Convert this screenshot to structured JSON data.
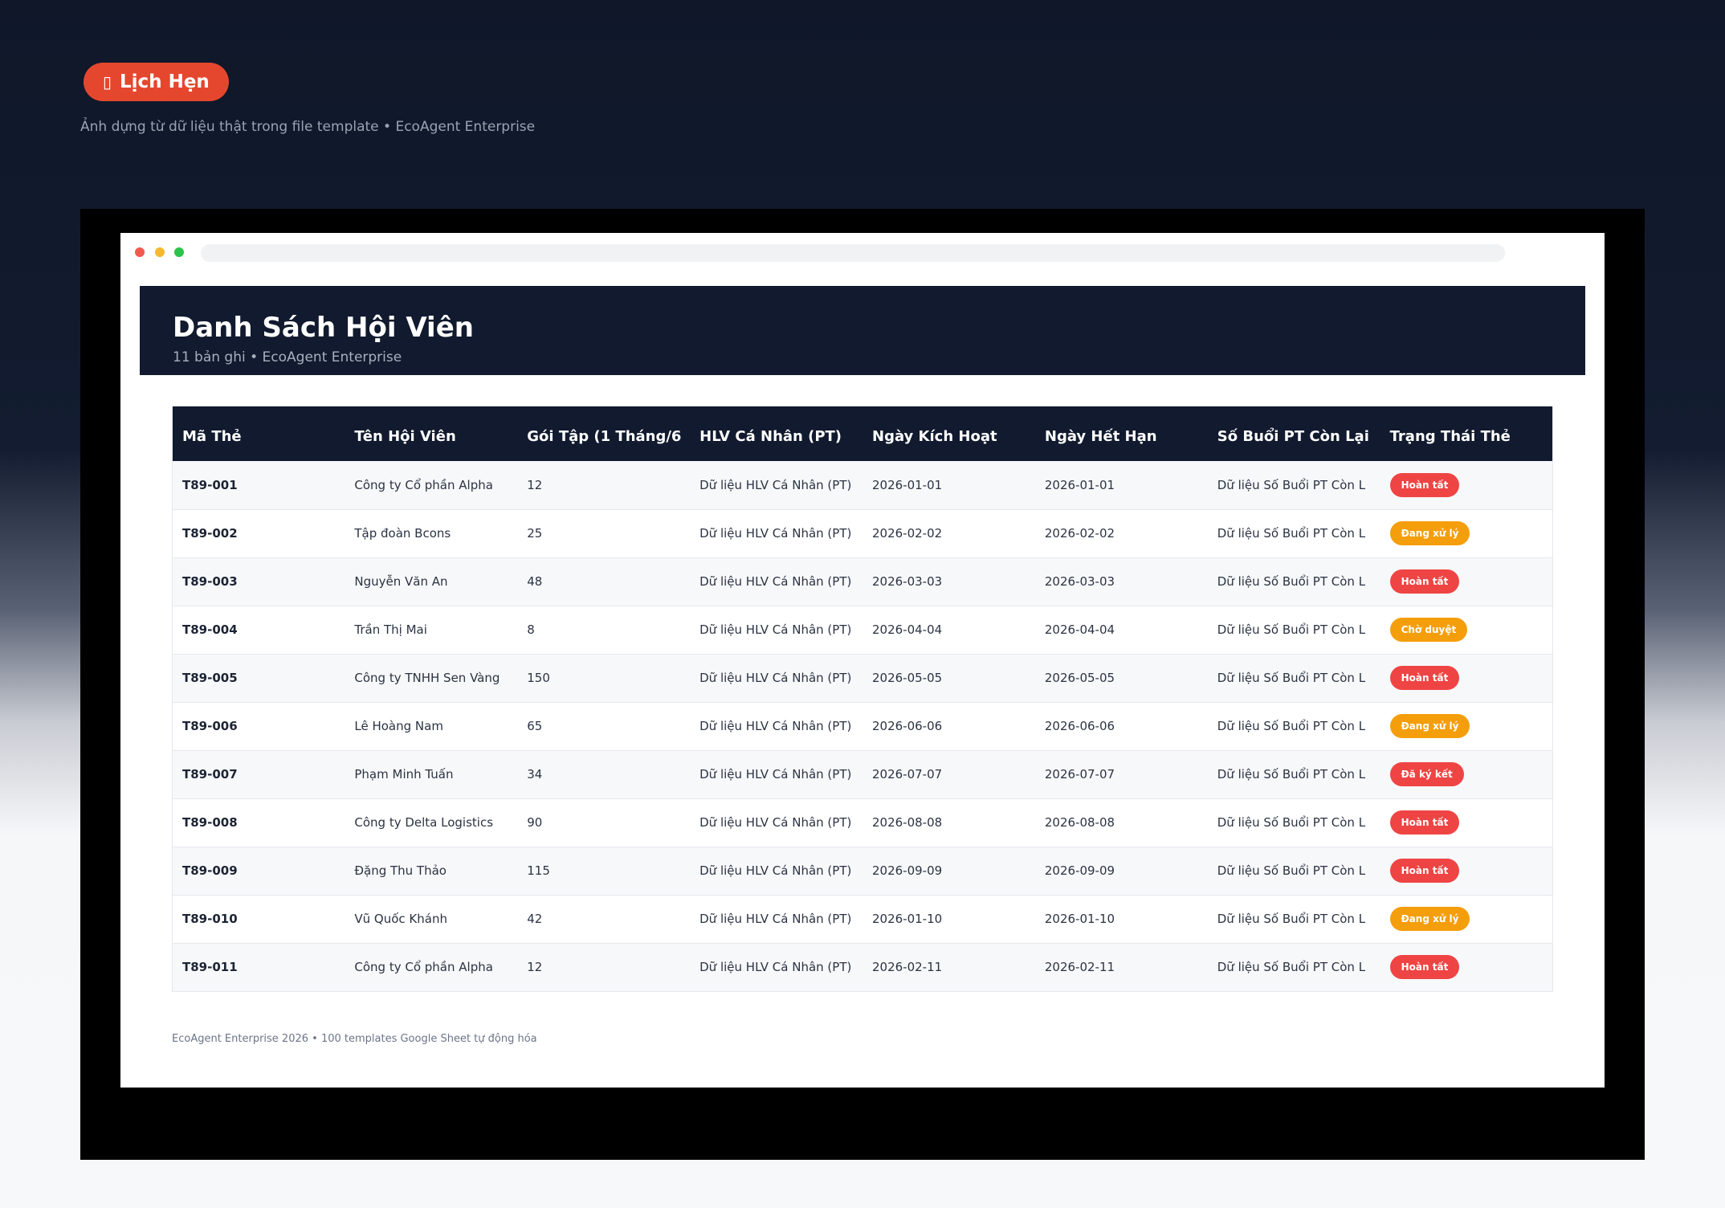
{
  "top": {
    "pill_icon": "▯",
    "pill_label": "Lịch Hẹn",
    "subtitle": "Ảnh dựng từ dữ liệu thật trong file template • EcoAgent Enterprise"
  },
  "header": {
    "title": "Danh Sách Hội Viên",
    "meta": "11 bản ghi • EcoAgent Enterprise"
  },
  "table": {
    "columns": [
      "Mã Thẻ",
      "Tên Hội Viên",
      "Gói Tập (1 Tháng/6",
      "HLV Cá Nhân (PT)",
      "Ngày Kích Hoạt",
      "Ngày Hết Hạn",
      "Số Buổi PT Còn Lại",
      "Trạng Thái Thẻ"
    ],
    "rows": [
      {
        "code": "T89-001",
        "name": "Công ty Cổ phần Alpha",
        "pkg": "12",
        "pt": "Dữ liệu HLV Cá Nhân (PT)",
        "start": "2026-01-01",
        "end": "2026-01-01",
        "left": "Dữ liệu Số Buổi PT Còn L",
        "status": "Hoàn tất",
        "color": "#ef4444"
      },
      {
        "code": "T89-002",
        "name": "Tập đoàn Bcons",
        "pkg": "25",
        "pt": "Dữ liệu HLV Cá Nhân (PT)",
        "start": "2026-02-02",
        "end": "2026-02-02",
        "left": "Dữ liệu Số Buổi PT Còn L",
        "status": "Đang xử lý",
        "color": "#f59e0b"
      },
      {
        "code": "T89-003",
        "name": "Nguyễn Văn An",
        "pkg": "48",
        "pt": "Dữ liệu HLV Cá Nhân (PT)",
        "start": "2026-03-03",
        "end": "2026-03-03",
        "left": "Dữ liệu Số Buổi PT Còn L",
        "status": "Hoàn tất",
        "color": "#ef4444"
      },
      {
        "code": "T89-004",
        "name": "Trần Thị Mai",
        "pkg": "8",
        "pt": "Dữ liệu HLV Cá Nhân (PT)",
        "start": "2026-04-04",
        "end": "2026-04-04",
        "left": "Dữ liệu Số Buổi PT Còn L",
        "status": "Chờ duyệt",
        "color": "#f59e0b"
      },
      {
        "code": "T89-005",
        "name": "Công ty TNHH Sen Vàng",
        "pkg": "150",
        "pt": "Dữ liệu HLV Cá Nhân (PT)",
        "start": "2026-05-05",
        "end": "2026-05-05",
        "left": "Dữ liệu Số Buổi PT Còn L",
        "status": "Hoàn tất",
        "color": "#ef4444"
      },
      {
        "code": "T89-006",
        "name": "Lê Hoàng Nam",
        "pkg": "65",
        "pt": "Dữ liệu HLV Cá Nhân (PT)",
        "start": "2026-06-06",
        "end": "2026-06-06",
        "left": "Dữ liệu Số Buổi PT Còn L",
        "status": "Đang xử lý",
        "color": "#f59e0b"
      },
      {
        "code": "T89-007",
        "name": "Phạm Minh Tuấn",
        "pkg": "34",
        "pt": "Dữ liệu HLV Cá Nhân (PT)",
        "start": "2026-07-07",
        "end": "2026-07-07",
        "left": "Dữ liệu Số Buổi PT Còn L",
        "status": "Đã ký kết",
        "color": "#ef4444"
      },
      {
        "code": "T89-008",
        "name": "Công ty Delta Logistics",
        "pkg": "90",
        "pt": "Dữ liệu HLV Cá Nhân (PT)",
        "start": "2026-08-08",
        "end": "2026-08-08",
        "left": "Dữ liệu Số Buổi PT Còn L",
        "status": "Hoàn tất",
        "color": "#ef4444"
      },
      {
        "code": "T89-009",
        "name": "Đặng Thu Thảo",
        "pkg": "115",
        "pt": "Dữ liệu HLV Cá Nhân (PT)",
        "start": "2026-09-09",
        "end": "2026-09-09",
        "left": "Dữ liệu Số Buổi PT Còn L",
        "status": "Hoàn tất",
        "color": "#ef4444"
      },
      {
        "code": "T89-010",
        "name": "Vũ Quốc Khánh",
        "pkg": "42",
        "pt": "Dữ liệu HLV Cá Nhân (PT)",
        "start": "2026-01-10",
        "end": "2026-01-10",
        "left": "Dữ liệu Số Buổi PT Còn L",
        "status": "Đang xử lý",
        "color": "#f59e0b"
      },
      {
        "code": "T89-011",
        "name": "Công ty Cổ phần Alpha",
        "pkg": "12",
        "pt": "Dữ liệu HLV Cá Nhân (PT)",
        "start": "2026-02-11",
        "end": "2026-02-11",
        "left": "Dữ liệu Số Buổi PT Còn L",
        "status": "Hoàn tất",
        "color": "#ef4444"
      }
    ]
  },
  "footer": {
    "note": "EcoAgent Enterprise 2026 • 100 templates Google Sheet tự động hóa"
  }
}
